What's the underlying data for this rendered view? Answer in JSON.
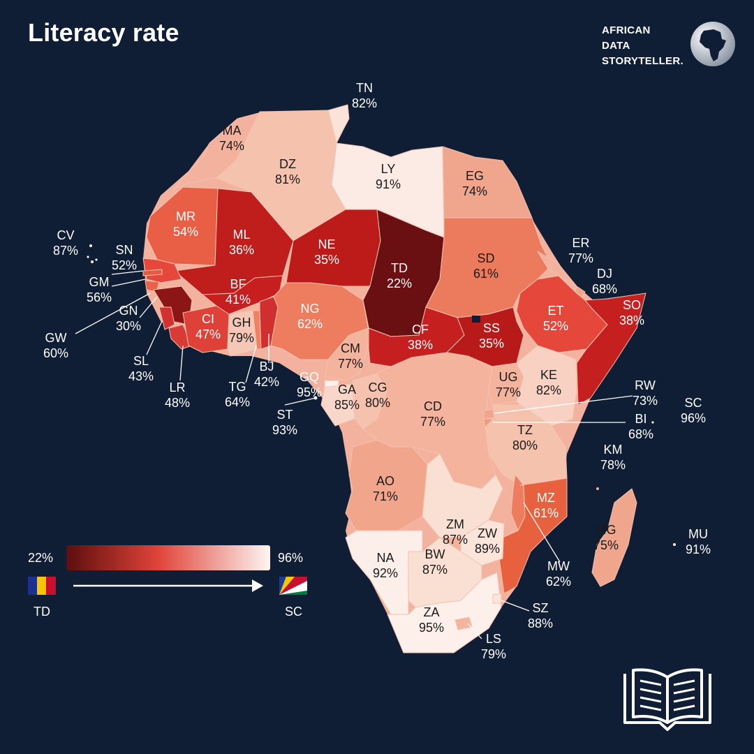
{
  "title": "Literacy rate",
  "brand": {
    "line1": "AFRICAN",
    "line2": "DATA",
    "line3": "STORYTELLER."
  },
  "icons": {
    "brand_logo": "africa-globe-icon",
    "book": "open-book-icon",
    "arrow": "right-arrow-icon"
  },
  "legend": {
    "min_label": "22%",
    "max_label": "96%",
    "min_code": "TD",
    "max_code": "SC",
    "color_low": "#5e0e0e",
    "color_mid": "#e0433a",
    "color_high": "#fdf5f2"
  },
  "countries": [
    {
      "code": "TN",
      "value": "82%"
    },
    {
      "code": "MA",
      "value": "74%"
    },
    {
      "code": "DZ",
      "value": "81%"
    },
    {
      "code": "LY",
      "value": "91%"
    },
    {
      "code": "EG",
      "value": "74%"
    },
    {
      "code": "MR",
      "value": "54%"
    },
    {
      "code": "ML",
      "value": "36%"
    },
    {
      "code": "NE",
      "value": "35%"
    },
    {
      "code": "TD",
      "value": "22%"
    },
    {
      "code": "SD",
      "value": "61%"
    },
    {
      "code": "ER",
      "value": "77%"
    },
    {
      "code": "DJ",
      "value": "68%"
    },
    {
      "code": "SO",
      "value": "38%"
    },
    {
      "code": "ET",
      "value": "52%"
    },
    {
      "code": "CV",
      "value": "87%"
    },
    {
      "code": "SN",
      "value": "52%"
    },
    {
      "code": "GM",
      "value": "56%"
    },
    {
      "code": "GN",
      "value": "30%"
    },
    {
      "code": "GW",
      "value": "60%"
    },
    {
      "code": "SL",
      "value": "43%"
    },
    {
      "code": "LR",
      "value": "48%"
    },
    {
      "code": "BF",
      "value": "41%"
    },
    {
      "code": "CI",
      "value": "47%"
    },
    {
      "code": "GH",
      "value": "79%"
    },
    {
      "code": "TG",
      "value": "64%"
    },
    {
      "code": "BJ",
      "value": "42%"
    },
    {
      "code": "NG",
      "value": "62%"
    },
    {
      "code": "CM",
      "value": "77%"
    },
    {
      "code": "CF",
      "value": "38%"
    },
    {
      "code": "SS",
      "value": "35%"
    },
    {
      "code": "GQ",
      "value": "95%"
    },
    {
      "code": "GA",
      "value": "85%"
    },
    {
      "code": "CG",
      "value": "80%"
    },
    {
      "code": "ST",
      "value": "93%"
    },
    {
      "code": "CD",
      "value": "77%"
    },
    {
      "code": "UG",
      "value": "77%"
    },
    {
      "code": "KE",
      "value": "82%"
    },
    {
      "code": "RW",
      "value": "73%"
    },
    {
      "code": "BI",
      "value": "68%"
    },
    {
      "code": "SC",
      "value": "96%"
    },
    {
      "code": "TZ",
      "value": "80%"
    },
    {
      "code": "KM",
      "value": "78%"
    },
    {
      "code": "AO",
      "value": "71%"
    },
    {
      "code": "ZM",
      "value": "87%"
    },
    {
      "code": "MZ",
      "value": "61%"
    },
    {
      "code": "MW",
      "value": "62%"
    },
    {
      "code": "MG",
      "value": "75%"
    },
    {
      "code": "MU",
      "value": "91%"
    },
    {
      "code": "ZW",
      "value": "89%"
    },
    {
      "code": "NA",
      "value": "92%"
    },
    {
      "code": "BW",
      "value": "87%"
    },
    {
      "code": "ZA",
      "value": "95%"
    },
    {
      "code": "SZ",
      "value": "88%"
    },
    {
      "code": "LS",
      "value": "79%"
    }
  ]
}
